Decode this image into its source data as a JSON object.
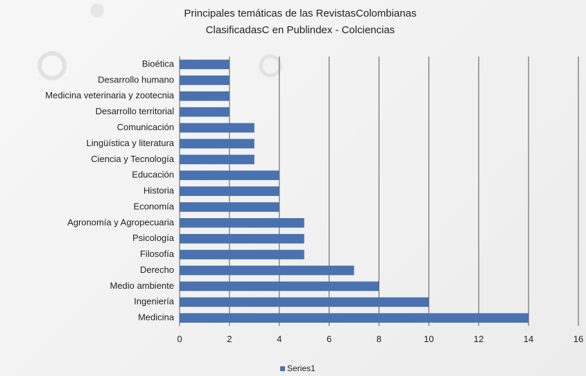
{
  "chart_data": {
    "type": "bar",
    "orientation": "horizontal",
    "title": [
      "Principales temáticas de las RevistasColombianas",
      "ClasificadasC en Publindex - Colciencias"
    ],
    "categories": [
      "Bioética",
      "Desarrollo humano",
      "Medicina veterinaria y zootecnia",
      "Desarrollo territorial",
      "Comunicación",
      "Lingüística y literatura",
      "Ciencia y Tecnología",
      "Educación",
      "Historia",
      "Economía",
      "Agronomía y Agropecuaria",
      "Psicología",
      "Filosofía",
      "Derecho",
      "Medio ambiente",
      "Ingeniería",
      "Medicina"
    ],
    "series": [
      {
        "name": "Series1",
        "color": "#4a72b0",
        "values": [
          2,
          2,
          2,
          2,
          3,
          3,
          3,
          4,
          4,
          4,
          5,
          5,
          5,
          7,
          8,
          10,
          14
        ]
      }
    ],
    "xlim": [
      0,
      16
    ],
    "xticks": [
      0,
      2,
      4,
      6,
      8,
      10,
      12,
      14,
      16
    ],
    "grid": true,
    "legend": "bottom"
  }
}
